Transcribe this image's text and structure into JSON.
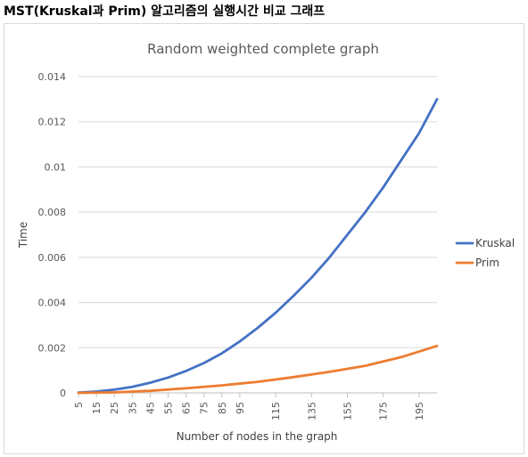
{
  "page_heading": "MST(Kruskal과 Prim) 알고리즘의 실행시간 비교 그래프",
  "chart_data": {
    "type": "line",
    "title": "Random weighted complete graph",
    "xlabel": "Number of nodes in the graph",
    "ylabel": "Time",
    "x": [
      5,
      15,
      25,
      35,
      45,
      55,
      65,
      75,
      85,
      95,
      115,
      135,
      155,
      175,
      195
    ],
    "x_tick_labels": [
      "5",
      "15",
      "25",
      "35",
      "45",
      "55",
      "65",
      "75",
      "85",
      "95",
      "115",
      "135",
      "155",
      "175",
      "195"
    ],
    "xlim": [
      5,
      205
    ],
    "ylim": [
      0,
      0.014
    ],
    "y_ticks": [
      0,
      0.002,
      0.004,
      0.006,
      0.008,
      0.01,
      0.012,
      0.014
    ],
    "y_tick_labels": [
      "0",
      "0.002",
      "0.004",
      "0.006",
      "0.008",
      "0.01",
      "0.012",
      "0.014"
    ],
    "grid": true,
    "legend_position": "right",
    "series": [
      {
        "name": "Kruskal",
        "color": "#4472c4",
        "points": [
          [
            5,
            1e-05
          ],
          [
            15,
            6e-05
          ],
          [
            25,
            0.00014
          ],
          [
            35,
            0.00027
          ],
          [
            45,
            0.00045
          ],
          [
            55,
            0.00068
          ],
          [
            65,
            0.00097
          ],
          [
            75,
            0.00132
          ],
          [
            85,
            0.00175
          ],
          [
            95,
            0.00228
          ],
          [
            105,
            0.00288
          ],
          [
            115,
            0.00355
          ],
          [
            125,
            0.0043
          ],
          [
            135,
            0.0051
          ],
          [
            145,
            0.006
          ],
          [
            155,
            0.007
          ],
          [
            165,
            0.008
          ],
          [
            175,
            0.0091
          ],
          [
            185,
            0.0103
          ],
          [
            195,
            0.0115
          ],
          [
            205,
            0.013
          ]
        ]
      },
      {
        "name": "Prim",
        "color": "#ed7d31",
        "points": [
          [
            5,
            0.0
          ],
          [
            25,
            2e-05
          ],
          [
            45,
            9e-05
          ],
          [
            65,
            0.0002
          ],
          [
            85,
            0.00033
          ],
          [
            105,
            0.00049
          ],
          [
            125,
            0.0007
          ],
          [
            145,
            0.00093
          ],
          [
            165,
            0.0012
          ],
          [
            185,
            0.00158
          ],
          [
            205,
            0.00208
          ]
        ]
      }
    ]
  }
}
